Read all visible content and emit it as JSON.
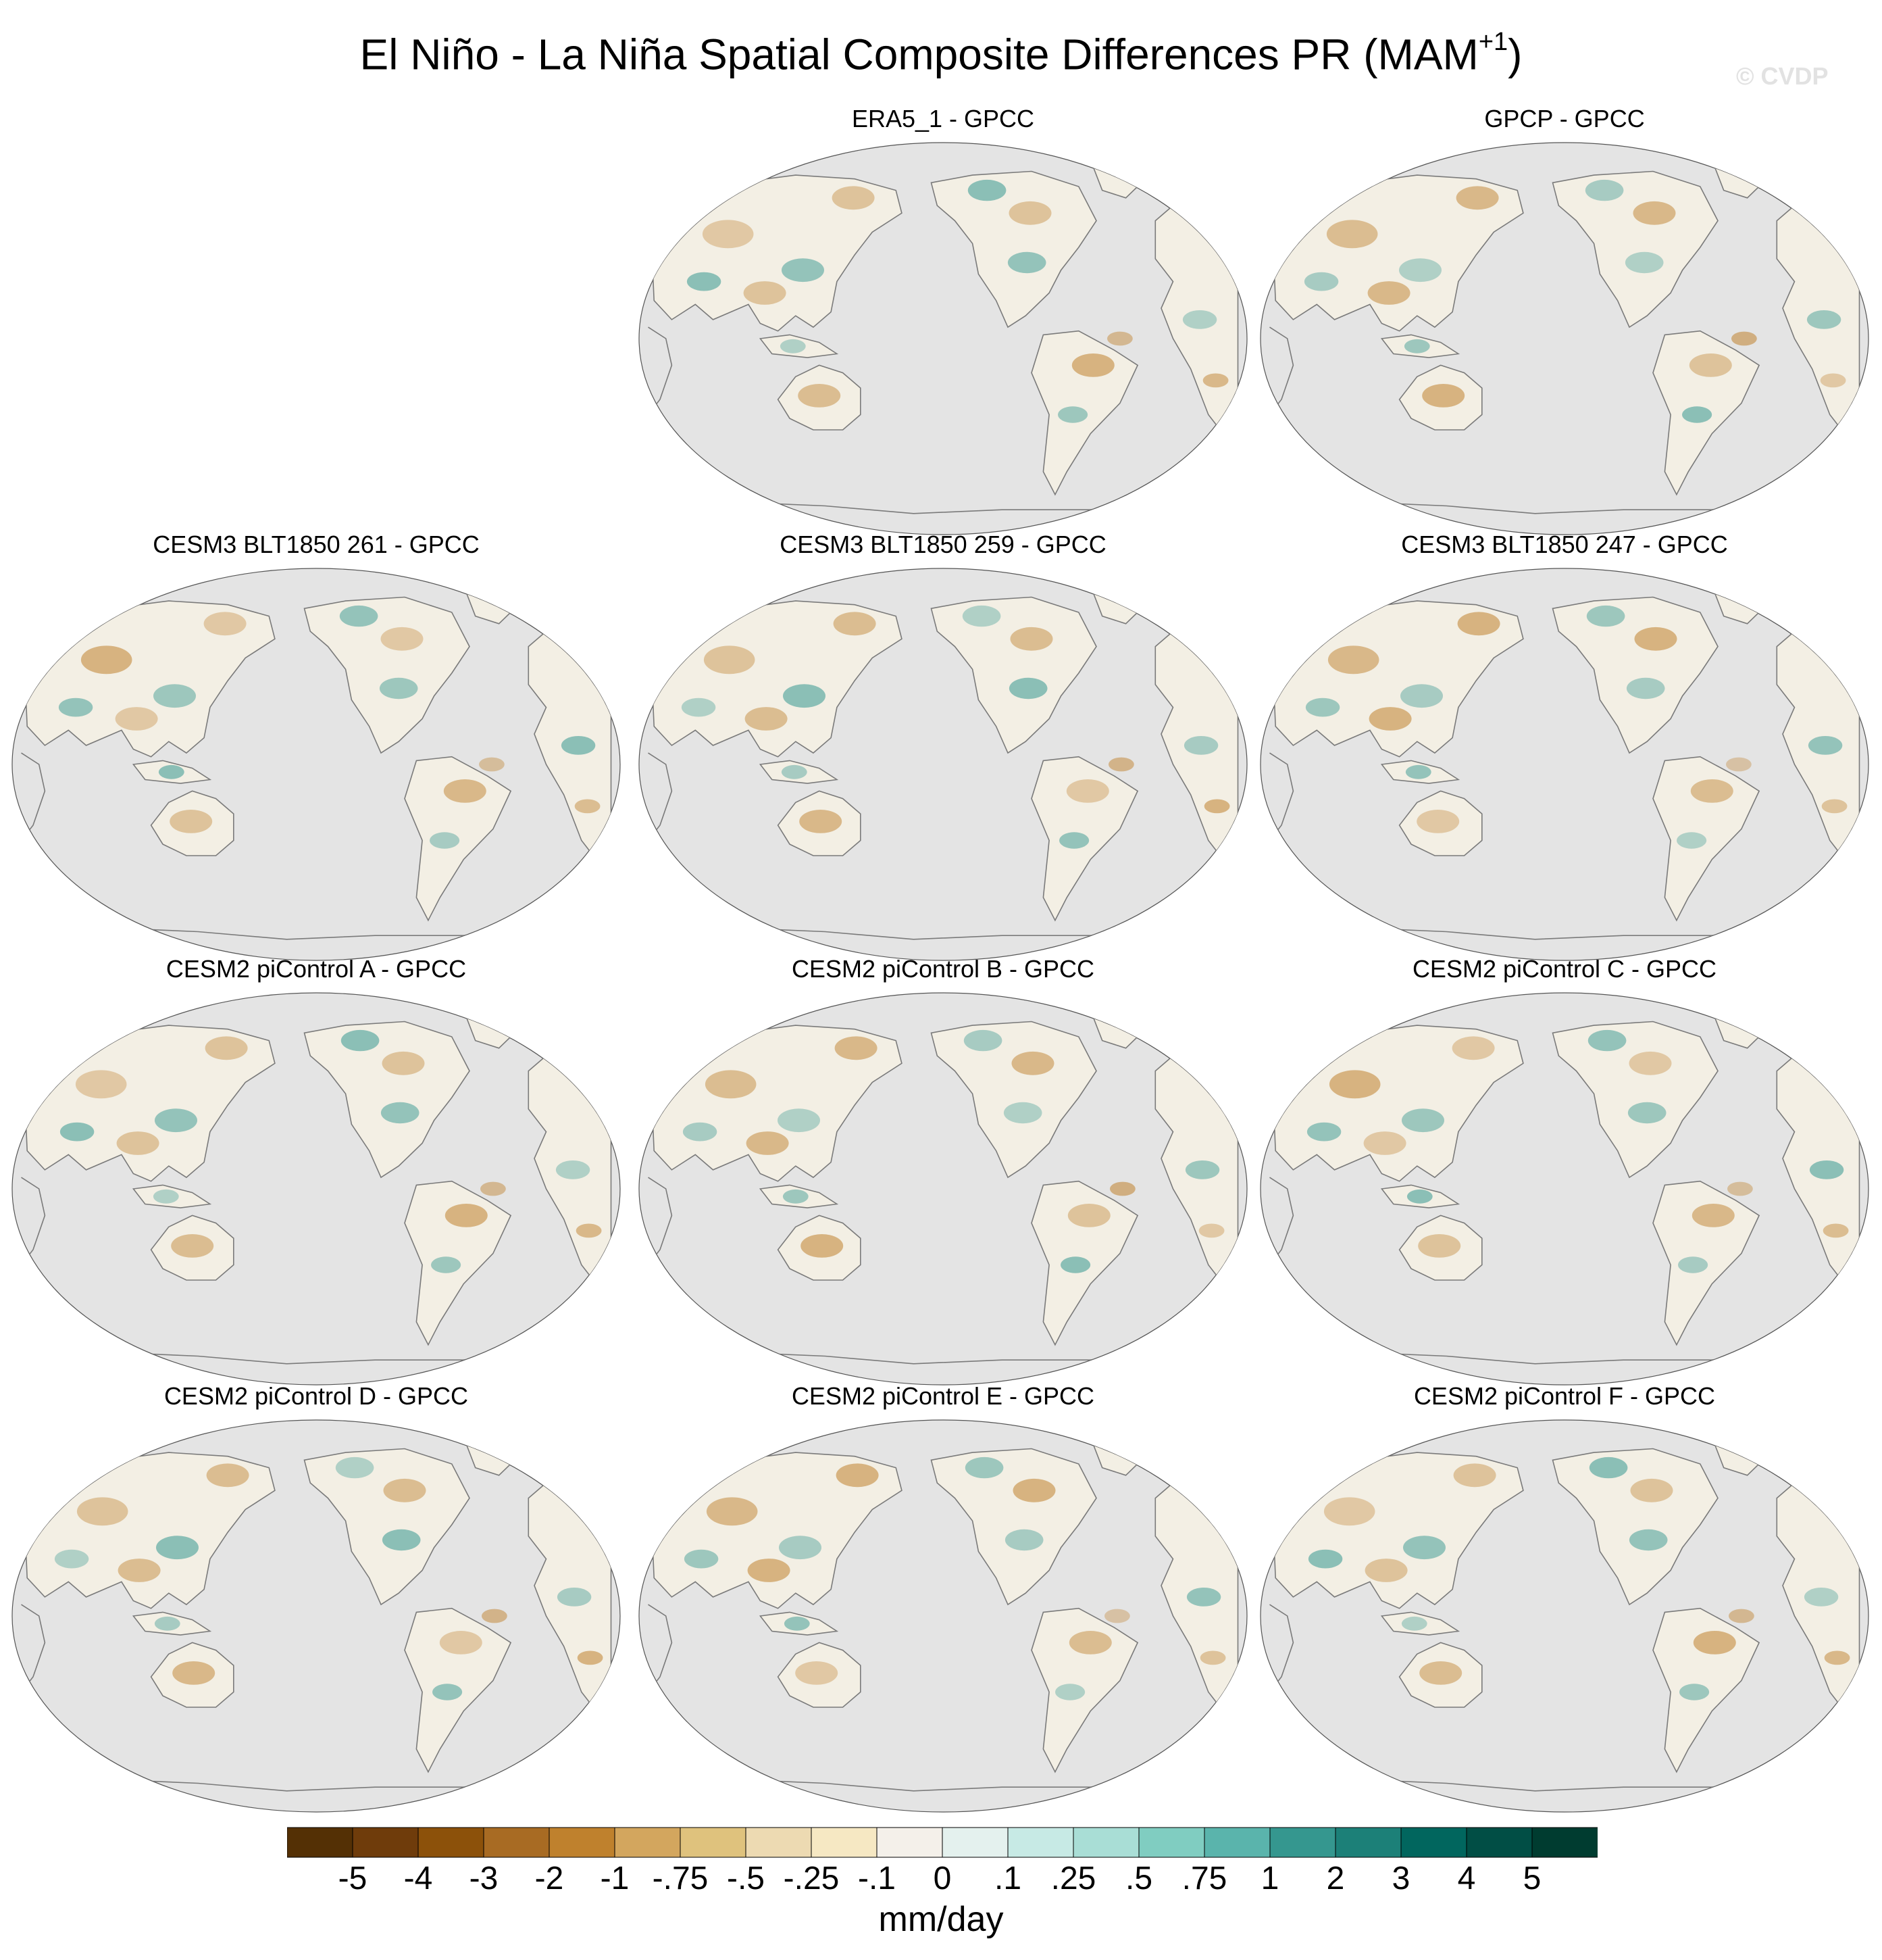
{
  "title": {
    "main": "El Niño - La Niña Spatial Composite Differences PR (MAM",
    "superscript": "+1",
    "close": ")"
  },
  "watermark": "© CVDP",
  "panels": [
    {
      "title": "ERA5_1 - GPCC"
    },
    {
      "title": "GPCP - GPCC"
    },
    {
      "title": "CESM3 BLT1850 261 - GPCC"
    },
    {
      "title": "CESM3 BLT1850 259 - GPCC"
    },
    {
      "title": "CESM3 BLT1850 247 - GPCC"
    },
    {
      "title": "CESM2 piControl A - GPCC"
    },
    {
      "title": "CESM2 piControl B - GPCC"
    },
    {
      "title": "CESM2 piControl C - GPCC"
    },
    {
      "title": "CESM2 piControl D - GPCC"
    },
    {
      "title": "CESM2 piControl E - GPCC"
    },
    {
      "title": "CESM2 piControl F - GPCC"
    }
  ],
  "colorbar": {
    "colors": [
      "#543005",
      "#6f3c0b",
      "#8c510a",
      "#a86b23",
      "#bf812d",
      "#d3a65e",
      "#dfc27d",
      "#eddab2",
      "#f6e8c3",
      "#f4f0ea",
      "#e4f1ee",
      "#c7eae5",
      "#a9ded6",
      "#80cdc1",
      "#5ab4ac",
      "#35978f",
      "#1c8078",
      "#01665e",
      "#014e45",
      "#003c30"
    ],
    "tick_labels": [
      "-5",
      "-4",
      "-3",
      "-2",
      "-1",
      "-.75",
      "-.5",
      "-.25",
      "-.1",
      "0",
      ".1",
      ".25",
      ".5",
      ".75",
      "1",
      "2",
      "3",
      "4",
      "5"
    ],
    "units": "mm/day"
  },
  "colors": {
    "ocean": "#e4e4e4",
    "coast": "#7a7a7a",
    "dry": "#bf812d",
    "wet": "#35978f"
  }
}
